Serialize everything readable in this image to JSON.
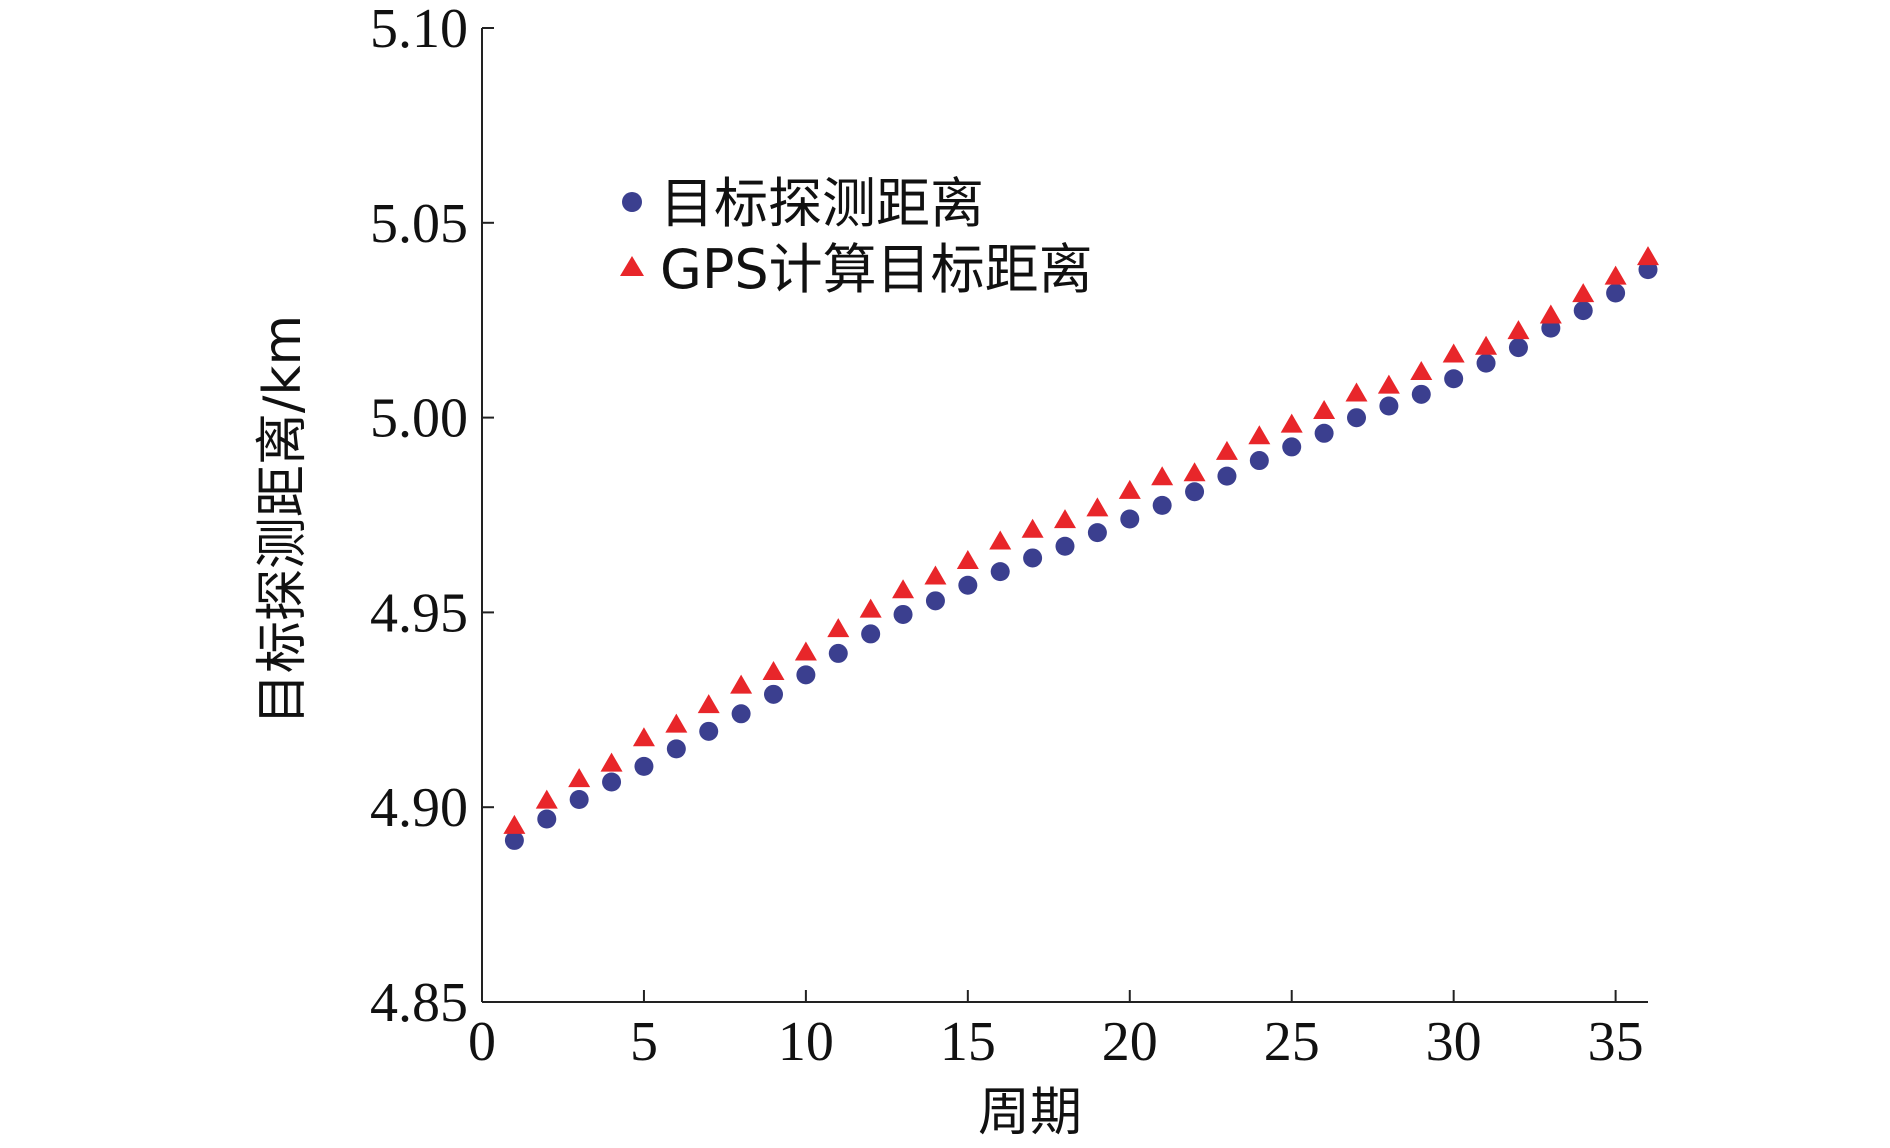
{
  "colors": {
    "series_circle": "#3b3f8f",
    "series_triangle": "#e8262a",
    "axis": "#222222"
  },
  "legend_placement": "upper-left inside plot",
  "chart_data": {
    "type": "scatter",
    "title": "",
    "xlabel": "周期",
    "ylabel": "目标探测距离/km",
    "xlim": [
      0,
      36
    ],
    "ylim": [
      4.85,
      5.1
    ],
    "x_ticks": [
      "0",
      "5",
      "10",
      "15",
      "20",
      "25",
      "30",
      "35"
    ],
    "y_ticks": [
      "4.85",
      "4.90",
      "4.95",
      "5.00",
      "5.05",
      "5.10"
    ],
    "x_tick_values": [
      0,
      5,
      10,
      15,
      20,
      25,
      30,
      35
    ],
    "y_tick_values": [
      4.85,
      4.9,
      4.95,
      5.0,
      5.05,
      5.1
    ],
    "grid": false,
    "legend": "top-left",
    "series": [
      {
        "name": "目标探测距离",
        "marker": "circle",
        "x": [
          1,
          2,
          3,
          4,
          5,
          6,
          7,
          8,
          9,
          10,
          11,
          12,
          13,
          14,
          15,
          16,
          17,
          18,
          19,
          20,
          21,
          22,
          23,
          24,
          25,
          26,
          27,
          28,
          29,
          30,
          31,
          32,
          33,
          34,
          35,
          36
        ],
        "values": [
          4.8925,
          4.898,
          4.903,
          4.9075,
          4.9115,
          4.916,
          4.9205,
          4.925,
          4.93,
          4.935,
          4.9405,
          4.9455,
          4.9505,
          4.954,
          4.958,
          4.9615,
          4.965,
          4.968,
          4.9715,
          4.975,
          4.9785,
          4.982,
          4.986,
          4.99,
          4.9935,
          4.997,
          5.001,
          5.004,
          5.007,
          5.011,
          5.015,
          5.019,
          5.024,
          5.0285,
          5.033,
          5.039
        ]
      },
      {
        "name": "GPS计算目标距离",
        "marker": "triangle",
        "x": [
          1,
          2,
          3,
          4,
          5,
          6,
          7,
          8,
          9,
          10,
          11,
          12,
          13,
          14,
          15,
          16,
          17,
          18,
          19,
          20,
          21,
          22,
          23,
          24,
          25,
          26,
          27,
          28,
          29,
          30,
          31,
          32,
          33,
          34,
          35,
          36
        ],
        "values": [
          4.895,
          4.9015,
          4.907,
          4.911,
          4.9175,
          4.921,
          4.926,
          4.931,
          4.9345,
          4.9395,
          4.9455,
          4.9505,
          4.9555,
          4.959,
          4.963,
          4.968,
          4.971,
          4.9735,
          4.9765,
          4.981,
          4.9845,
          4.9855,
          4.991,
          4.995,
          4.998,
          5.0015,
          5.006,
          5.008,
          5.0115,
          5.016,
          5.018,
          5.022,
          5.026,
          5.0315,
          5.036,
          5.041
        ]
      }
    ]
  }
}
